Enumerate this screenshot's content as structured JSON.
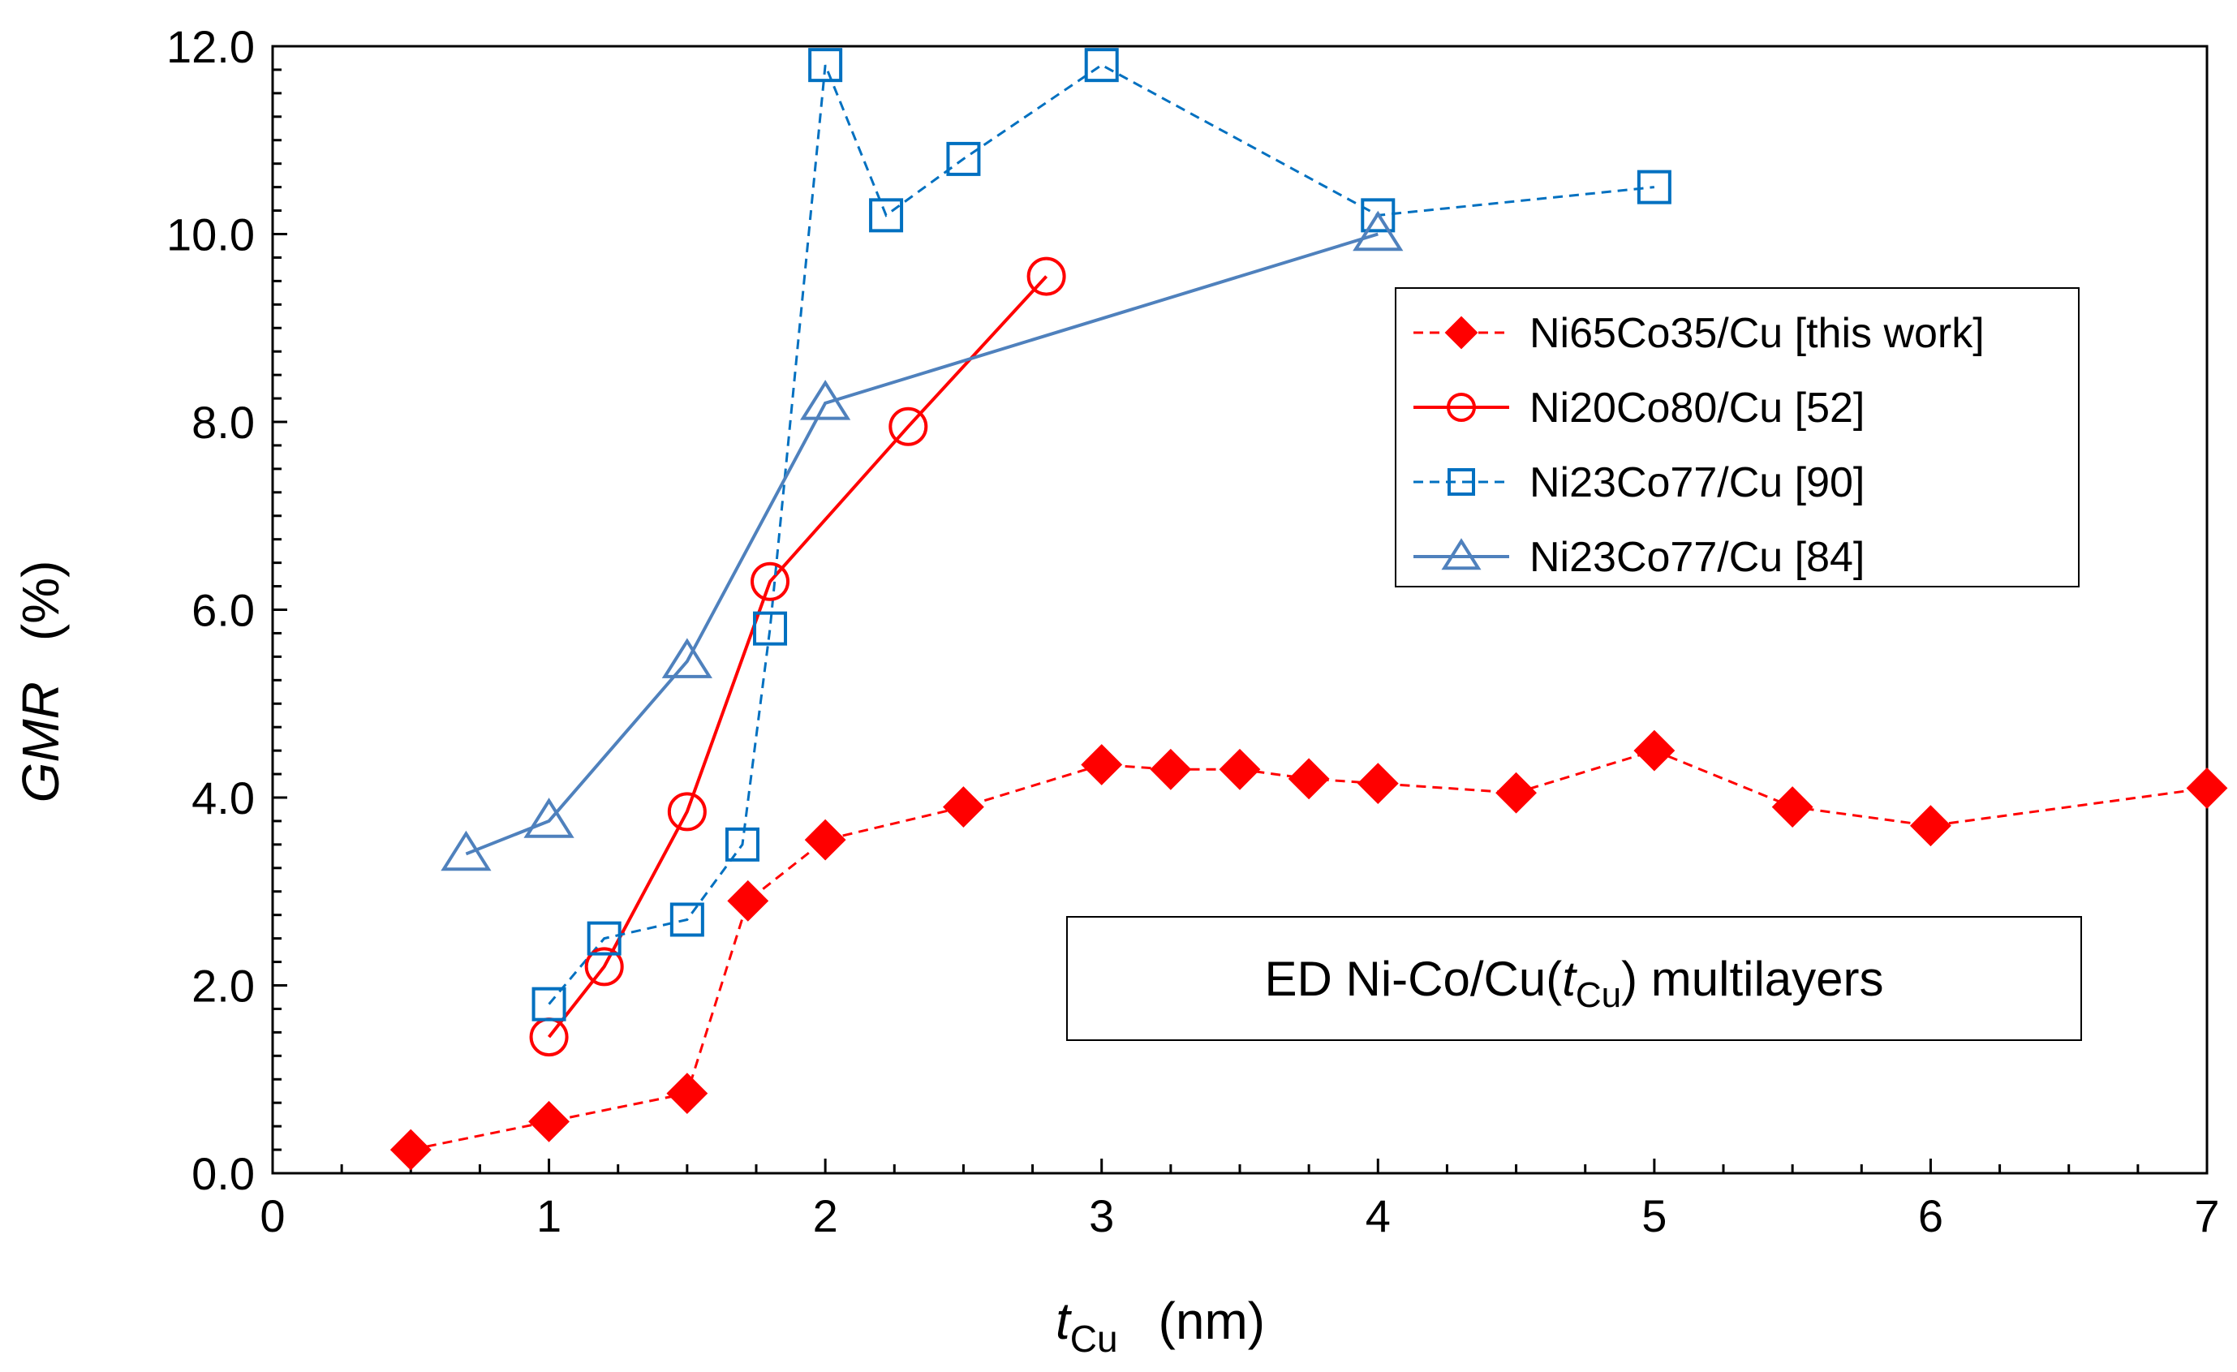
{
  "chart_data": {
    "type": "line",
    "title": "",
    "xlabel": {
      "main": "t",
      "sub": "Cu",
      "unit": "(nm)"
    },
    "ylabel": {
      "main": "GMR",
      "unit": "(%)"
    },
    "xlim": [
      0,
      7
    ],
    "ylim": [
      0,
      12
    ],
    "x_ticks": [
      0,
      1,
      2,
      3,
      4,
      5,
      6,
      7
    ],
    "x_tick_labels": [
      "0",
      "1",
      "2",
      "3",
      "4",
      "5",
      "6",
      "7"
    ],
    "y_ticks": [
      0,
      2,
      4,
      6,
      8,
      10,
      12
    ],
    "y_tick_labels": [
      "0.0",
      "2.0",
      "4.0",
      "6.0",
      "8.0",
      "10.0",
      "12.0"
    ],
    "grid": false,
    "legend_position": "right",
    "annotation": {
      "pre": "ED Ni-Co/Cu(",
      "t": "t",
      "sub": "Cu",
      "post": ") multilayers"
    },
    "series": [
      {
        "name": "Ni65Co35/Cu [this work]",
        "color": "#ff0000",
        "marker": "diamond-filled",
        "line": "dashed",
        "x": [
          0.5,
          1.0,
          1.5,
          1.72,
          2.0,
          2.5,
          3.0,
          3.25,
          3.5,
          3.75,
          4.0,
          4.5,
          5.0,
          5.5,
          6.0,
          7.0
        ],
        "y": [
          0.25,
          0.55,
          0.85,
          2.9,
          3.55,
          3.9,
          4.35,
          4.3,
          4.3,
          4.2,
          4.15,
          4.05,
          4.5,
          3.9,
          3.7,
          4.1
        ]
      },
      {
        "name": "Ni20Co80/Cu [52]",
        "color": "#ff0000",
        "marker": "circle-open",
        "line": "solid",
        "x": [
          1.0,
          1.2,
          1.5,
          1.8,
          2.3,
          2.8
        ],
        "y": [
          1.45,
          2.2,
          3.85,
          6.3,
          7.95,
          9.55
        ]
      },
      {
        "name": "Ni23Co77/Cu [90]",
        "color": "#0070c0",
        "marker": "square-open",
        "line": "dashed",
        "x": [
          1.0,
          1.2,
          1.5,
          1.7,
          1.8,
          2.0,
          2.22,
          2.5,
          3.0,
          4.0,
          5.0
        ],
        "y": [
          1.8,
          2.5,
          2.7,
          3.5,
          5.8,
          11.8,
          10.2,
          10.8,
          11.8,
          10.2,
          10.5
        ]
      },
      {
        "name": "Ni23Co77/Cu [84]",
        "color": "#4f81bd",
        "marker": "triangle-open",
        "line": "solid",
        "x": [
          0.7,
          1.0,
          1.5,
          2.0,
          4.0
        ],
        "y": [
          3.4,
          3.75,
          5.45,
          8.2,
          10.0
        ]
      }
    ]
  }
}
